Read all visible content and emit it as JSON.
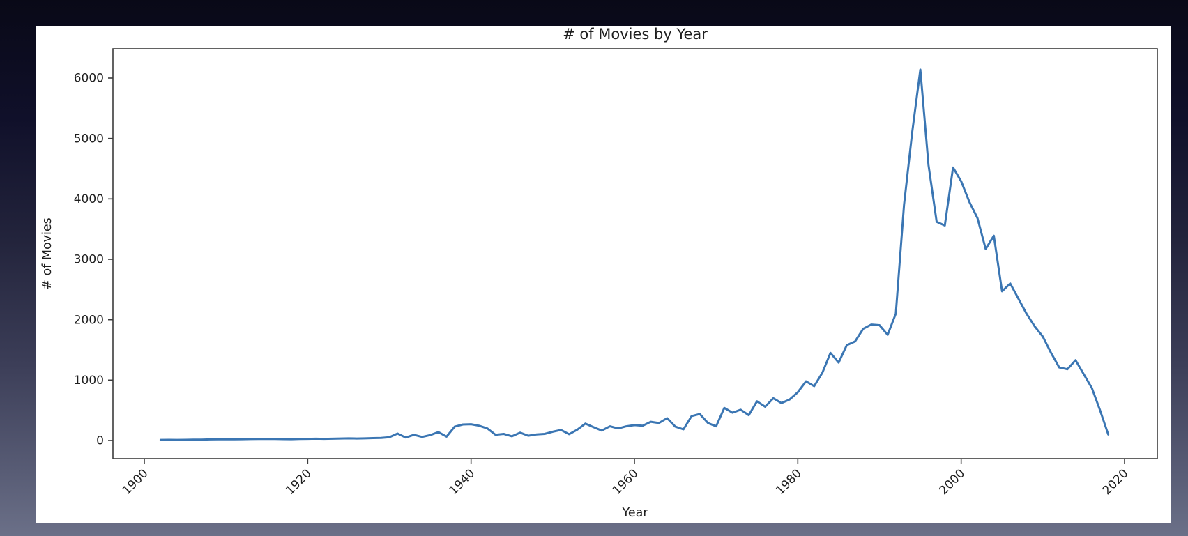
{
  "page": {
    "background_top": "#090917",
    "background_bottom": "#6b7088",
    "figure_background": "#ffffff"
  },
  "chart_data": {
    "type": "line",
    "title": "# of Movies by Year",
    "xlabel": "Year",
    "ylabel": "# of Movies",
    "x": [
      1902,
      1903,
      1904,
      1905,
      1906,
      1907,
      1908,
      1909,
      1910,
      1911,
      1912,
      1913,
      1914,
      1915,
      1916,
      1917,
      1918,
      1919,
      1920,
      1921,
      1922,
      1923,
      1924,
      1925,
      1926,
      1927,
      1928,
      1929,
      1930,
      1931,
      1932,
      1933,
      1934,
      1935,
      1936,
      1937,
      1938,
      1939,
      1940,
      1941,
      1942,
      1943,
      1944,
      1945,
      1946,
      1947,
      1948,
      1949,
      1950,
      1951,
      1952,
      1953,
      1954,
      1955,
      1956,
      1957,
      1958,
      1959,
      1960,
      1961,
      1962,
      1963,
      1964,
      1965,
      1966,
      1967,
      1968,
      1969,
      1970,
      1971,
      1972,
      1973,
      1974,
      1975,
      1976,
      1977,
      1978,
      1979,
      1980,
      1981,
      1982,
      1983,
      1984,
      1985,
      1986,
      1987,
      1988,
      1989,
      1990,
      1991,
      1992,
      1993,
      1994,
      1995,
      1996,
      1997,
      1998,
      1999,
      2000,
      2001,
      2002,
      2003,
      2004,
      2005,
      2006,
      2007,
      2008,
      2009,
      2010,
      2011,
      2012,
      2013,
      2014,
      2015,
      2016,
      2017,
      2018
    ],
    "values": [
      10,
      12,
      10,
      12,
      14,
      15,
      18,
      20,
      22,
      20,
      22,
      24,
      25,
      27,
      25,
      23,
      22,
      25,
      28,
      30,
      28,
      30,
      33,
      36,
      33,
      36,
      40,
      44,
      55,
      115,
      50,
      95,
      60,
      90,
      140,
      65,
      230,
      265,
      270,
      245,
      200,
      95,
      110,
      70,
      130,
      80,
      100,
      110,
      145,
      175,
      105,
      180,
      280,
      220,
      165,
      235,
      200,
      235,
      255,
      245,
      310,
      290,
      370,
      230,
      185,
      405,
      440,
      290,
      235,
      540,
      460,
      510,
      420,
      650,
      560,
      700,
      620,
      680,
      800,
      980,
      900,
      1120,
      1450,
      1290,
      1580,
      1640,
      1850,
      1920,
      1910,
      1750,
      2100,
      3900,
      5100,
      6140,
      4560,
      3620,
      3560,
      4520,
      4290,
      3950,
      3680,
      3170,
      3390,
      2470,
      2600,
      2350,
      2100,
      1890,
      1720,
      1450,
      1210,
      1180,
      1330,
      1100,
      870,
      500,
      100
    ],
    "xticks": [
      1900,
      1920,
      1940,
      1960,
      1980,
      2000,
      2020
    ],
    "yticks": [
      0,
      1000,
      2000,
      3000,
      4000,
      5000,
      6000
    ],
    "xlim": [
      1896,
      2024
    ],
    "ylim": [
      -300,
      6480
    ],
    "grid": false,
    "legend": null,
    "xtick_rotation_deg": 45,
    "line_color": "#3b76b3",
    "axis_color": "#3c3c3c",
    "text_color": "#1f1f1f"
  }
}
